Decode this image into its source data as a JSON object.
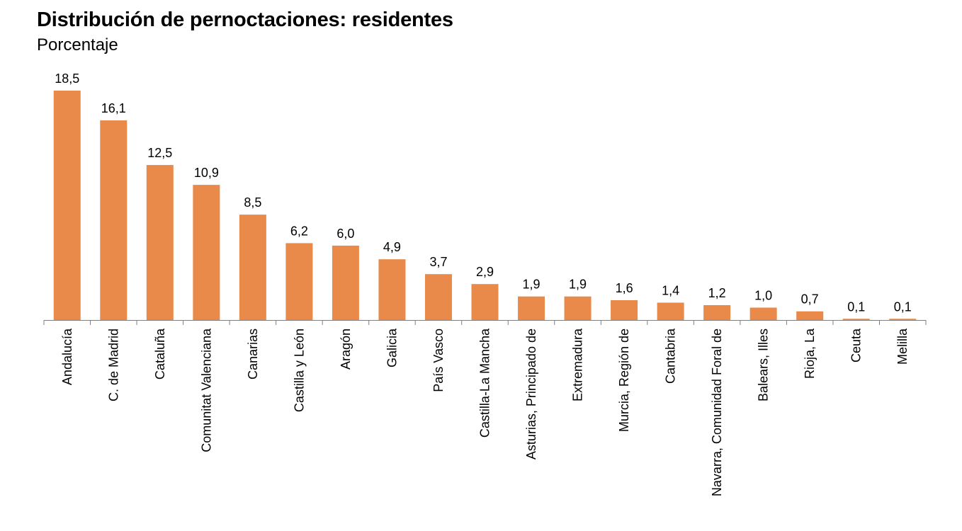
{
  "chart_data": {
    "type": "bar",
    "title": "Distribución de pernoctaciones: residentes",
    "subtitle": "Porcentaje",
    "categories": [
      "Andalucía",
      "C. de Madrid",
      "Cataluña",
      "Comunitat Valenciana",
      "Canarias",
      "Castilla y León",
      "Aragón",
      "Galicia",
      "País Vasco",
      "Castilla-La Mancha",
      "Asturias, Principado de",
      "Extremadura",
      "Murcia, Región de",
      "Cantabria",
      "Navarra, Comunidad Foral de",
      "Balears, Illes",
      "Rioja, La",
      "Ceuta",
      "Melilla"
    ],
    "values": [
      18.5,
      16.1,
      12.5,
      10.9,
      8.5,
      6.2,
      6.0,
      4.9,
      3.7,
      2.9,
      1.9,
      1.9,
      1.6,
      1.4,
      1.2,
      1.0,
      0.7,
      0.1,
      0.1
    ],
    "value_labels": [
      "18,5",
      "16,1",
      "12,5",
      "10,9",
      "8,5",
      "6,2",
      "6,0",
      "4,9",
      "3,7",
      "2,9",
      "1,9",
      "1,9",
      "1,6",
      "1,4",
      "1,2",
      "1,0",
      "0,7",
      "0,1",
      "0,1"
    ],
    "xlabel": "",
    "ylabel": "",
    "ylim": [
      0,
      18.5
    ],
    "grid": false,
    "legend": "none",
    "colors": {
      "bar": "#E98A4A",
      "axis": "#7f7f7f"
    }
  }
}
